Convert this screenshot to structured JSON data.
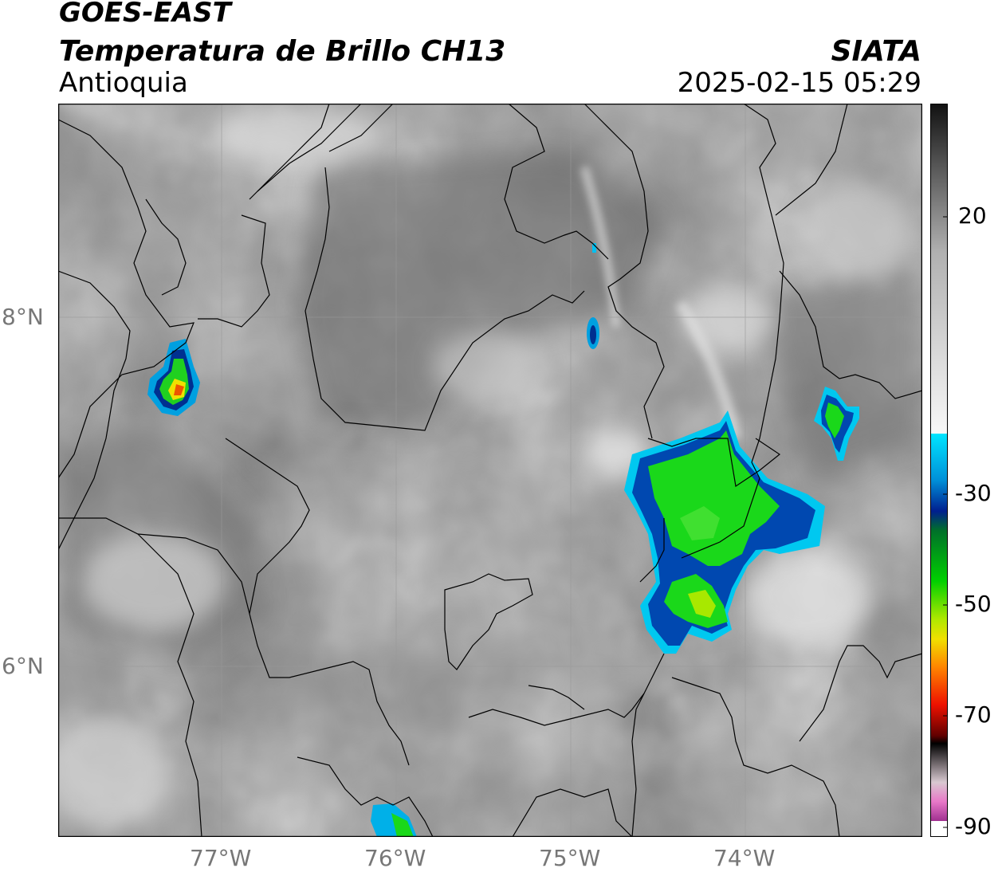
{
  "header": {
    "title_line1": "GOES-EAST",
    "title_line2": "Temperatura de Brillo CH13",
    "region": "Antioquia",
    "organization": "SIATA",
    "datetime": "2025-02-15 05:29"
  },
  "map": {
    "lat_labels": [
      "8°N",
      "6°N"
    ],
    "lon_labels": [
      "77°W",
      "76°W",
      "75°W",
      "74°W"
    ]
  },
  "colorbar": {
    "range": [
      -90,
      40
    ],
    "tick_labels": [
      "20",
      "-30",
      "-50",
      "-70",
      "-90"
    ],
    "colors": {
      "gray_dark": "#111111",
      "gray_light": "#f5f5f5",
      "cyan": "#00e5ff",
      "blue": "#001f8f",
      "green": "#00d000",
      "yellow": "#f0e000",
      "red": "#ee1100",
      "magenta": "#c040b0",
      "pink": "#e878c8"
    }
  }
}
